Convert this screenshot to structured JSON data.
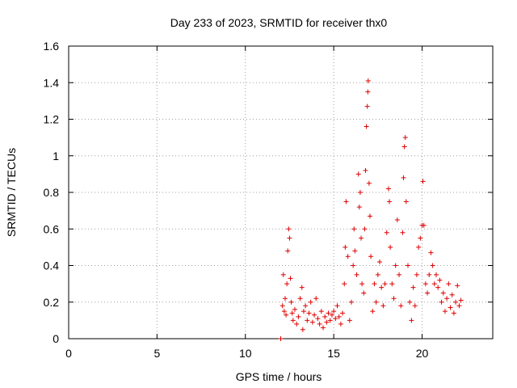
{
  "chart_data": {
    "type": "scatter",
    "title": "Day 233 of 2023, SRMTID for receiver thx0",
    "xlabel": "GPS time / hours",
    "ylabel": "SRMTID / TECUs",
    "xlim": [
      0,
      24
    ],
    "ylim": [
      0,
      1.6
    ],
    "xticks": [
      0,
      5,
      10,
      15,
      20
    ],
    "xtick_labels": [
      "0",
      "5",
      "10",
      "15",
      "20"
    ],
    "yticks": [
      0,
      0.2,
      0.4,
      0.6,
      0.8,
      1.0,
      1.2,
      1.4,
      1.6
    ],
    "ytick_labels": [
      "0",
      "0.2",
      "0.4",
      "0.6",
      "0.8",
      "1",
      "1.2",
      "1.4",
      "1.6"
    ],
    "grid": true,
    "marker": "plus",
    "color": "#e00000",
    "series": [
      {
        "name": "SRMTID",
        "points": [
          [
            12.0,
            0.0
          ],
          [
            12.1,
            0.18
          ],
          [
            12.15,
            0.35
          ],
          [
            12.2,
            0.15
          ],
          [
            12.25,
            0.22
          ],
          [
            12.3,
            0.13
          ],
          [
            12.35,
            0.3
          ],
          [
            12.4,
            0.48
          ],
          [
            12.45,
            0.6
          ],
          [
            12.5,
            0.55
          ],
          [
            12.55,
            0.33
          ],
          [
            12.6,
            0.2
          ],
          [
            12.65,
            0.14
          ],
          [
            12.7,
            0.1
          ],
          [
            12.8,
            0.16
          ],
          [
            12.9,
            0.08
          ],
          [
            13.0,
            0.12
          ],
          [
            13.1,
            0.22
          ],
          [
            13.2,
            0.28
          ],
          [
            13.25,
            0.05
          ],
          [
            13.3,
            0.15
          ],
          [
            13.4,
            0.18
          ],
          [
            13.5,
            0.1
          ],
          [
            13.6,
            0.14
          ],
          [
            13.7,
            0.2
          ],
          [
            13.8,
            0.09
          ],
          [
            13.9,
            0.13
          ],
          [
            14.0,
            0.22
          ],
          [
            14.1,
            0.11
          ],
          [
            14.2,
            0.08
          ],
          [
            14.3,
            0.15
          ],
          [
            14.4,
            0.06
          ],
          [
            14.5,
            0.12
          ],
          [
            14.6,
            0.09
          ],
          [
            14.7,
            0.14
          ],
          [
            14.8,
            0.1
          ],
          [
            14.9,
            0.13
          ],
          [
            15.0,
            0.15
          ],
          [
            15.1,
            0.11
          ],
          [
            15.2,
            0.18
          ],
          [
            15.3,
            0.12
          ],
          [
            15.4,
            0.08
          ],
          [
            15.5,
            0.14
          ],
          [
            15.6,
            0.3
          ],
          [
            15.65,
            0.5
          ],
          [
            15.7,
            0.75
          ],
          [
            15.8,
            0.45
          ],
          [
            15.9,
            0.1
          ],
          [
            16.0,
            0.2
          ],
          [
            16.1,
            0.4
          ],
          [
            16.15,
            0.6
          ],
          [
            16.2,
            0.48
          ],
          [
            16.3,
            0.35
          ],
          [
            16.4,
            0.9
          ],
          [
            16.45,
            0.72
          ],
          [
            16.5,
            0.8
          ],
          [
            16.55,
            0.55
          ],
          [
            16.6,
            0.3
          ],
          [
            16.7,
            0.25
          ],
          [
            16.75,
            0.6
          ],
          [
            16.8,
            0.92
          ],
          [
            16.85,
            1.16
          ],
          [
            16.9,
            1.27
          ],
          [
            16.93,
            1.35
          ],
          [
            16.95,
            1.41
          ],
          [
            17.0,
            0.85
          ],
          [
            17.05,
            0.67
          ],
          [
            17.1,
            0.45
          ],
          [
            17.2,
            0.15
          ],
          [
            17.3,
            0.3
          ],
          [
            17.4,
            0.2
          ],
          [
            17.5,
            0.35
          ],
          [
            17.6,
            0.42
          ],
          [
            17.7,
            0.28
          ],
          [
            17.8,
            0.18
          ],
          [
            17.9,
            0.3
          ],
          [
            18.0,
            0.58
          ],
          [
            18.1,
            0.82
          ],
          [
            18.15,
            0.75
          ],
          [
            18.2,
            0.5
          ],
          [
            18.3,
            0.3
          ],
          [
            18.4,
            0.22
          ],
          [
            18.5,
            0.4
          ],
          [
            18.6,
            0.65
          ],
          [
            18.7,
            0.35
          ],
          [
            18.8,
            0.18
          ],
          [
            18.9,
            0.58
          ],
          [
            18.95,
            0.88
          ],
          [
            19.0,
            1.05
          ],
          [
            19.05,
            1.1
          ],
          [
            19.1,
            0.75
          ],
          [
            19.2,
            0.4
          ],
          [
            19.3,
            0.2
          ],
          [
            19.4,
            0.1
          ],
          [
            19.5,
            0.28
          ],
          [
            19.6,
            0.18
          ],
          [
            19.7,
            0.35
          ],
          [
            19.8,
            0.5
          ],
          [
            19.9,
            0.55
          ],
          [
            20.0,
            0.62
          ],
          [
            20.05,
            0.86
          ],
          [
            20.1,
            0.62
          ],
          [
            20.2,
            0.3
          ],
          [
            20.3,
            0.25
          ],
          [
            20.4,
            0.35
          ],
          [
            20.5,
            0.47
          ],
          [
            20.6,
            0.4
          ],
          [
            20.7,
            0.3
          ],
          [
            20.8,
            0.35
          ],
          [
            20.9,
            0.28
          ],
          [
            21.0,
            0.32
          ],
          [
            21.1,
            0.2
          ],
          [
            21.2,
            0.25
          ],
          [
            21.3,
            0.15
          ],
          [
            21.4,
            0.22
          ],
          [
            21.5,
            0.3
          ],
          [
            21.6,
            0.17
          ],
          [
            21.7,
            0.24
          ],
          [
            21.8,
            0.14
          ],
          [
            21.9,
            0.2
          ],
          [
            22.0,
            0.29
          ],
          [
            22.1,
            0.18
          ],
          [
            22.2,
            0.21
          ]
        ]
      }
    ]
  }
}
